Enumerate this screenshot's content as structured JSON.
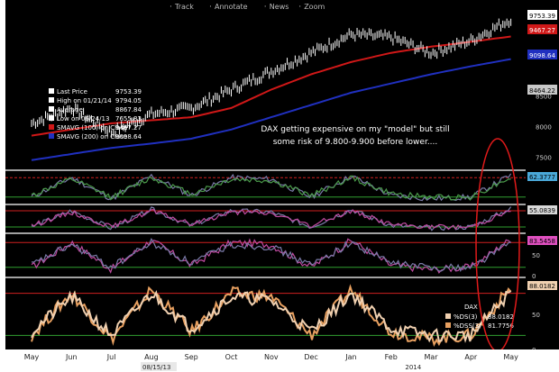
{
  "toolbar": {
    "items": [
      {
        "icon": "plus-icon",
        "label": "Track"
      },
      {
        "icon": "pencil-icon",
        "label": "Annotate"
      },
      {
        "icon": "news-icon",
        "label": "News"
      },
      {
        "icon": "magnifier-icon",
        "label": "Zoom"
      }
    ]
  },
  "colors": {
    "background": "#000000",
    "price": "#ffffff",
    "sma100": "#d01818",
    "sma200": "#2030c0",
    "osc_line_1": "#7a7aa8",
    "osc_line_2": "#c04aa0",
    "stoch_d": "#e8a060",
    "stoch_k": "#f0d0b0",
    "circle": "#e01a1a",
    "panel_sep": "#d8d8d8",
    "level_red": "#d02020",
    "level_green": "#30a030"
  },
  "legend": {
    "rows": [
      {
        "label": "Last Price",
        "value": "9753.39",
        "swatch": null
      },
      {
        "label": "High on 01/21/14",
        "value": "9794.05",
        "swatch": null
      },
      {
        "label": "Average",
        "value": "8867.84",
        "swatch": null
      },
      {
        "label": "Low on 06/24/13",
        "value": "7655.83",
        "swatch": null
      },
      {
        "label": "SMAVG (100) on Close",
        "value": "9467.27",
        "swatch": "#d01818"
      },
      {
        "label": "SMAVG (200) on Close",
        "value": "9098.64",
        "swatch": "#2030c0"
      }
    ]
  },
  "annotation": {
    "line1": "DAX getting expensive on my \"model\" but still",
    "line2": "some risk of 9.800-9.900 before lower...."
  },
  "price_axis": {
    "ticks": [
      "8500",
      "8000",
      "7500"
    ],
    "tags": [
      {
        "text": "9753.39",
        "bg": "#ffffff",
        "fg": "#000000"
      },
      {
        "text": "9467.27",
        "bg": "#d01818",
        "fg": "#ffffff"
      },
      {
        "text": "9098.64",
        "bg": "#2030c0",
        "fg": "#ffffff"
      },
      {
        "text": "8464.22",
        "bg": "#c8c8c8",
        "fg": "#000000"
      }
    ]
  },
  "panel_tags": [
    {
      "text": "62.3777",
      "bg": "#4aa8d8"
    },
    {
      "text": "55.0839",
      "bg": "#d8d8d8"
    },
    {
      "text": "83.5458",
      "bg": "#e050c0"
    },
    {
      "text": "88.0182",
      "bg": "#f0d0b0"
    }
  ],
  "panel_ticks": {
    "p3": [
      "50",
      "0"
    ],
    "p4": [
      "50",
      "0"
    ]
  },
  "stoch_legend": {
    "title": "DAX",
    "rows": [
      {
        "label": "%DS(3)",
        "value": "88.0182",
        "swatch": "#f0d0b0"
      },
      {
        "label": "%DSS(3)",
        "value": "81.7756",
        "swatch": "#e8a060"
      }
    ]
  },
  "x_axis": {
    "months": [
      "May",
      "Jun",
      "Jul",
      "Aug",
      "Sep",
      "Oct",
      "Nov",
      "Dec",
      "Jan",
      "Feb",
      "Mar",
      "Apr",
      "May"
    ],
    "date_tag": "08/15/13",
    "year": "2014"
  },
  "chart_data": {
    "type": "line",
    "title": "",
    "x": [
      "May",
      "Jun",
      "Jul",
      "Aug",
      "Sep",
      "Oct",
      "Nov",
      "Dec",
      "Jan",
      "Feb",
      "Mar",
      "Apr",
      "May"
    ],
    "ylim": [
      7300,
      9900
    ],
    "series": [
      {
        "name": "Last Price",
        "values": [
          8050,
          8300,
          7900,
          8200,
          8300,
          8600,
          8900,
          9200,
          9500,
          9450,
          9200,
          9400,
          9750
        ]
      },
      {
        "name": "SMAVG (100) on Close",
        "values": [
          7850,
          7950,
          8050,
          8100,
          8150,
          8300,
          8600,
          8850,
          9050,
          9200,
          9300,
          9380,
          9467
        ]
      },
      {
        "name": "SMAVG (200) on Close",
        "values": [
          7450,
          7550,
          7650,
          7720,
          7800,
          7950,
          8150,
          8350,
          8550,
          8700,
          8850,
          8980,
          9098
        ]
      }
    ],
    "oscillators": {
      "ylim": [
        0,
        100
      ],
      "levels": [
        80,
        20
      ],
      "series": [
        {
          "name": "%DS(3)",
          "values": [
            20,
            80,
            15,
            85,
            25,
            80,
            75,
            20,
            85,
            25,
            15,
            20,
            88
          ]
        },
        {
          "name": "%DSS(3)",
          "values": [
            25,
            75,
            20,
            80,
            30,
            75,
            70,
            25,
            80,
            30,
            20,
            20,
            82
          ]
        }
      ]
    }
  }
}
